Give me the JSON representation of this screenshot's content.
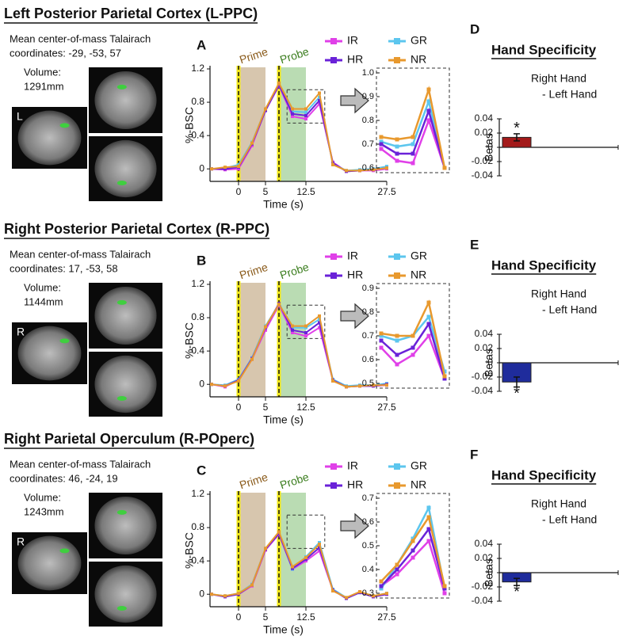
{
  "sections": [
    {
      "title": "Left Posterior Parietal Cortex (L-PPC)",
      "description": [
        "Mean center-of-mass Talairach",
        "coordinates: -29, -53, 57"
      ],
      "volume_label": "Volume:",
      "volume": "1291mm",
      "orientation": "L"
    },
    {
      "title": "Right Posterior Parietal Cortex (R-PPC)",
      "description": [
        "Mean center-of-mass Talairach",
        "coordinates: 17, -53, 58"
      ],
      "volume_label": "Volume:",
      "volume": "1144mm",
      "orientation": "R"
    },
    {
      "title": "Right Parietal Operculum (R-POperc)",
      "description": [
        "Mean center-of-mass Talairach",
        "coordinates: 46, -24, 19"
      ],
      "volume_label": "Volume:",
      "volume": "1243mm",
      "orientation": "R"
    }
  ],
  "chart_data": [
    {
      "type": "line",
      "panel_label": "A",
      "xlabel": "Time (s)",
      "ylabel": "%-BSC",
      "legend": "upper right",
      "x": [
        -5,
        -2.5,
        0,
        2.5,
        5,
        7.5,
        10,
        12.5,
        15,
        17.5,
        20,
        22.5,
        25,
        27.5
      ],
      "xlim": [
        -5,
        27.5
      ],
      "xticks": [
        0,
        5,
        12.5,
        27.5
      ],
      "ylim": [
        -0.15,
        1.2
      ],
      "yticks": [
        0,
        0.4,
        0.8,
        1.2
      ],
      "regions": [
        {
          "label": "Prime",
          "start": 0,
          "end": 5,
          "color": "#cdb89a"
        },
        {
          "label": "Probe",
          "start": 7.5,
          "end": 12.5,
          "color": "#a9d3a0"
        }
      ],
      "event_lines": [
        0,
        7.5
      ],
      "series": [
        {
          "name": "IR",
          "color": "#e040e8",
          "values": [
            0,
            -0.01,
            0.0,
            0.28,
            0.7,
            1.0,
            0.63,
            0.6,
            0.78,
            0.08,
            -0.03,
            -0.02,
            -0.02,
            0.0
          ]
        },
        {
          "name": "GR",
          "color": "#5cc6ee",
          "values": [
            0,
            0.01,
            0.05,
            0.32,
            0.72,
            1.02,
            0.69,
            0.68,
            0.86,
            0.06,
            -0.02,
            -0.01,
            0.0,
            0.03
          ]
        },
        {
          "name": "HR",
          "color": "#6a22d8",
          "values": [
            0,
            0.0,
            0.02,
            0.3,
            0.7,
            1.01,
            0.66,
            0.64,
            0.82,
            0.07,
            -0.03,
            -0.02,
            -0.01,
            0.01
          ]
        },
        {
          "name": "NR",
          "color": "#e8992e",
          "values": [
            0,
            0.02,
            0.03,
            0.31,
            0.72,
            1.03,
            0.72,
            0.72,
            0.91,
            0.05,
            -0.02,
            -0.02,
            -0.01,
            0.01
          ]
        }
      ]
    },
    {
      "type": "line",
      "categories": [
        null,
        null,
        null,
        null,
        null
      ],
      "ylim": [
        0.6,
        1.0
      ],
      "yticks": [
        0.6,
        0.7,
        0.8,
        0.9,
        {
          "value": 1.0,
          "label": "1.0"
        }
      ],
      "series": [
        {
          "color": "#e040e8",
          "values": [
            0.68,
            0.63,
            0.62,
            0.8,
            0.6
          ]
        },
        {
          "color": "#5cc6ee",
          "values": [
            0.71,
            0.69,
            0.7,
            0.88,
            0.6
          ]
        },
        {
          "color": "#6a22d8",
          "values": [
            0.7,
            0.66,
            0.66,
            0.84,
            0.6
          ]
        },
        {
          "color": "#e8992e",
          "values": [
            0.73,
            0.72,
            0.73,
            0.93,
            0.6
          ]
        }
      ]
    },
    {
      "type": "bar",
      "panel_label": "D",
      "title": "Hand Specificity",
      "annotation": [
        "Right Hand",
        "- Left Hand"
      ],
      "ylabel": "Betas",
      "values": [
        0.014
      ],
      "errors": [
        0.005
      ],
      "significance": "*",
      "color": "#a31a1a",
      "ylim": [
        -0.04,
        0.04
      ],
      "yticks": [
        -0.04,
        -0.02,
        0,
        0.02,
        0.04
      ]
    },
    {
      "type": "line",
      "panel_label": "B",
      "xlabel": "Time (s)",
      "ylabel": "%-BSC",
      "legend": "upper right",
      "x": [
        -5,
        -2.5,
        0,
        2.5,
        5,
        7.5,
        10,
        12.5,
        15,
        17.5,
        20,
        22.5,
        25,
        27.5
      ],
      "xlim": [
        -5,
        27.5
      ],
      "xticks": [
        0,
        5,
        12.5,
        27.5
      ],
      "ylim": [
        -0.15,
        1.2
      ],
      "yticks": [
        0,
        0.4,
        0.8,
        1.2
      ],
      "regions": [
        {
          "label": "Prime",
          "start": 0,
          "end": 5,
          "color": "#cdb89a"
        },
        {
          "label": "Probe",
          "start": 7.5,
          "end": 12.5,
          "color": "#a9d3a0"
        }
      ],
      "event_lines": [
        0,
        7.5
      ],
      "series": [
        {
          "name": "IR",
          "color": "#e040e8",
          "values": [
            0,
            -0.03,
            0.05,
            0.3,
            0.65,
            0.95,
            0.62,
            0.58,
            0.68,
            0.05,
            -0.03,
            -0.02,
            -0.02,
            -0.01
          ]
        },
        {
          "name": "GR",
          "color": "#5cc6ee",
          "values": [
            0,
            -0.01,
            0.06,
            0.32,
            0.7,
            0.96,
            0.68,
            0.68,
            0.78,
            0.06,
            -0.02,
            -0.01,
            -0.01,
            0.01
          ]
        },
        {
          "name": "HR",
          "color": "#6a22d8",
          "values": [
            0,
            -0.02,
            0.05,
            0.31,
            0.68,
            0.97,
            0.65,
            0.62,
            0.74,
            0.05,
            -0.03,
            -0.02,
            -0.02,
            0.0
          ]
        },
        {
          "name": "NR",
          "color": "#e8992e",
          "values": [
            0,
            -0.02,
            0.04,
            0.3,
            0.69,
            0.96,
            0.7,
            0.7,
            0.82,
            0.04,
            -0.03,
            -0.02,
            -0.01,
            -0.01
          ]
        }
      ]
    },
    {
      "type": "line",
      "categories": [
        null,
        null,
        null,
        null,
        null
      ],
      "ylim": [
        0.5,
        0.9
      ],
      "yticks": [
        0.5,
        0.6,
        0.7,
        0.8,
        0.9
      ],
      "series": [
        {
          "color": "#e040e8",
          "values": [
            0.65,
            0.58,
            0.62,
            0.7,
            0.52
          ]
        },
        {
          "color": "#5cc6ee",
          "values": [
            0.7,
            0.68,
            0.7,
            0.78,
            0.55
          ]
        },
        {
          "color": "#6a22d8",
          "values": [
            0.68,
            0.62,
            0.65,
            0.75,
            0.52
          ]
        },
        {
          "color": "#e8992e",
          "values": [
            0.71,
            0.7,
            0.7,
            0.84,
            0.53
          ]
        }
      ]
    },
    {
      "type": "bar",
      "panel_label": "E",
      "title": "Hand Specificity",
      "annotation": [
        "Right Hand",
        "- Left Hand"
      ],
      "ylabel": "Betas",
      "values": [
        -0.027
      ],
      "errors": [
        0.007
      ],
      "significance": "*",
      "color": "#1f2c9c",
      "ylim": [
        -0.04,
        0.04
      ],
      "yticks": [
        -0.04,
        -0.02,
        0,
        0.02,
        0.04
      ]
    },
    {
      "type": "line",
      "panel_label": "C",
      "xlabel": "Time (s)",
      "ylabel": "%-BSC",
      "legend": "upper right",
      "x": [
        -5,
        -2.5,
        0,
        2.5,
        5,
        7.5,
        10,
        12.5,
        15,
        17.5,
        20,
        22.5,
        25,
        27.5
      ],
      "xlim": [
        -5,
        27.5
      ],
      "xticks": [
        0,
        5,
        12.5,
        27.5
      ],
      "ylim": [
        -0.15,
        1.2
      ],
      "yticks": [
        0,
        0.4,
        0.8,
        1.2
      ],
      "regions": [
        {
          "label": "Prime",
          "start": 0,
          "end": 5,
          "color": "#cdb89a"
        },
        {
          "label": "Probe",
          "start": 7.5,
          "end": 12.5,
          "color": "#a9d3a0"
        }
      ],
      "event_lines": [
        0,
        7.5
      ],
      "series": [
        {
          "name": "IR",
          "color": "#e040e8",
          "values": [
            0,
            -0.03,
            0.0,
            0.1,
            0.53,
            0.72,
            0.3,
            0.4,
            0.52,
            0.05,
            -0.05,
            0.03,
            -0.03,
            0.0
          ]
        },
        {
          "name": "GR",
          "color": "#5cc6ee",
          "values": [
            0,
            -0.02,
            0.01,
            0.12,
            0.55,
            0.74,
            0.3,
            0.45,
            0.62,
            0.06,
            -0.04,
            0.02,
            -0.02,
            0.01
          ]
        },
        {
          "name": "HR",
          "color": "#6a22d8",
          "values": [
            0,
            -0.03,
            0.0,
            0.11,
            0.54,
            0.73,
            0.31,
            0.42,
            0.56,
            0.05,
            -0.05,
            0.02,
            -0.03,
            0.0
          ]
        },
        {
          "name": "NR",
          "color": "#e8992e",
          "values": [
            0,
            -0.02,
            0.01,
            0.11,
            0.55,
            0.75,
            0.33,
            0.44,
            0.6,
            0.04,
            -0.04,
            0.03,
            -0.02,
            0.01
          ]
        }
      ]
    },
    {
      "type": "line",
      "categories": [
        null,
        null,
        null,
        null,
        null
      ],
      "ylim": [
        0.3,
        0.7
      ],
      "yticks": [
        0.3,
        0.4,
        0.5,
        0.6,
        0.7
      ],
      "series": [
        {
          "color": "#e040e8",
          "values": [
            0.33,
            0.38,
            0.45,
            0.52,
            0.3
          ]
        },
        {
          "color": "#5cc6ee",
          "values": [
            0.32,
            0.42,
            0.53,
            0.66,
            0.32
          ]
        },
        {
          "color": "#6a22d8",
          "values": [
            0.33,
            0.4,
            0.48,
            0.57,
            0.32
          ]
        },
        {
          "color": "#e8992e",
          "values": [
            0.35,
            0.42,
            0.52,
            0.62,
            0.33
          ]
        }
      ]
    },
    {
      "type": "bar",
      "panel_label": "F",
      "title": "Hand Specificity",
      "annotation": [
        "Right Hand",
        "- Left Hand"
      ],
      "ylabel": "Betas",
      "values": [
        -0.013
      ],
      "errors": [
        0.005
      ],
      "significance": "*",
      "color": "#1f2c9c",
      "ylim": [
        -0.04,
        0.04
      ],
      "yticks": [
        -0.04,
        -0.02,
        0,
        0.02,
        0.04
      ]
    }
  ]
}
